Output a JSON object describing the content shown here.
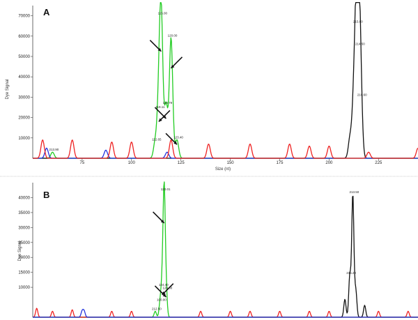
{
  "chart_data": [
    {
      "type": "line",
      "panel_label": "A",
      "ylabel": "Dye Signal",
      "xlabel": "Size (nt)",
      "xlim": [
        50,
        245
      ],
      "ylim": [
        0,
        75000
      ],
      "x_ticks": [
        75,
        100,
        125,
        150,
        175,
        200,
        225
      ],
      "y_ticks": [
        10000,
        20000,
        30000,
        40000,
        50000,
        60000,
        70000
      ],
      "series": [
        {
          "color": "#22cc22",
          "peaks": [
            [
              60,
              3000
            ],
            [
              113.79,
              24000
            ],
            [
              115.0,
              70000
            ],
            [
              117.5,
              26000
            ],
            [
              120.0,
              59000
            ],
            [
              123.0,
              9000
            ],
            [
              112,
              8000
            ]
          ]
        },
        {
          "color": "#111111",
          "peaks": [
            [
              210.6,
              10000
            ],
            [
              212.5,
              28000
            ],
            [
              213.9,
              66000
            ],
            [
              215.0,
              55000
            ],
            [
              216,
              30000
            ]
          ]
        },
        {
          "color": "#2233dd",
          "peaks": [
            [
              57,
              5000
            ],
            [
              87,
              4000
            ],
            [
              118,
              3000
            ]
          ]
        },
        {
          "color": "#ee2222",
          "peaks": [
            [
              55,
              9000
            ],
            [
              70,
              9000
            ],
            [
              90,
              8000
            ],
            [
              100,
              8000
            ],
            [
              120,
              9000
            ],
            [
              139,
              7000
            ],
            [
              160,
              7000
            ],
            [
              180,
              7000
            ],
            [
              190,
              6000
            ],
            [
              200,
              6000
            ],
            [
              220,
              3000
            ],
            [
              245,
              5000
            ]
          ]
        }
      ],
      "peak_labels": [
        "115.00",
        "120.00",
        "113.79",
        "119.11",
        "123.40",
        "112.65",
        "213.90",
        "215.00",
        "214.50",
        "210.60"
      ],
      "arrows": 5
    },
    {
      "type": "line",
      "panel_label": "B",
      "ylabel": "Dye Signal",
      "xlim": [
        50,
        245
      ],
      "ylim": [
        0,
        45000
      ],
      "y_ticks": [
        10000,
        15000,
        20000,
        25000,
        30000,
        35000,
        40000
      ],
      "series": [
        {
          "color": "#22cc22",
          "peaks": [
            [
              112,
              2000
            ],
            [
              114.5,
              5000
            ],
            [
              115.5,
              10000
            ],
            [
              116.5,
              42000
            ],
            [
              117.5,
              9000
            ]
          ]
        },
        {
          "color": "#111111",
          "peaks": [
            [
              208,
              6000
            ],
            [
              210.5,
              14000
            ],
            [
              212,
              41000
            ],
            [
              213.5,
              9000
            ],
            [
              218,
              4000
            ]
          ]
        },
        {
          "color": "#ee2222",
          "peaks": [
            [
              52,
              3000
            ],
            [
              60,
              2000
            ],
            [
              70,
              2500
            ],
            [
              90,
              2000
            ],
            [
              100,
              2000
            ],
            [
              135,
              2000
            ],
            [
              150,
              2000
            ],
            [
              160,
              2000
            ],
            [
              175,
              2000
            ],
            [
              190,
              2000
            ],
            [
              200,
              2000
            ],
            [
              225,
              2000
            ],
            [
              240,
              2000
            ]
          ]
        },
        {
          "color": "#2233dd",
          "peaks": [
            [
              75,
              2000
            ],
            [
              76,
              2000
            ]
          ]
        }
      ],
      "peak_labels": [
        "120.01",
        "124.40",
        "120.80",
        "100.00",
        "212.50",
        "213.50",
        "215.20"
      ],
      "arrows": 3
    }
  ]
}
